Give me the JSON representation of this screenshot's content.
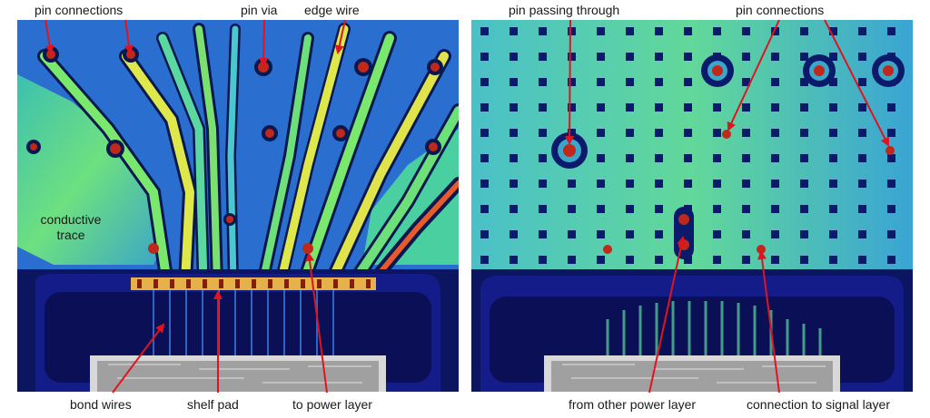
{
  "labels": {
    "pin_connections_left": "pin connections",
    "pin_via": "pin via",
    "edge_wire": "edge wire",
    "conductive_trace": "conductive trace",
    "bond_wires": "bond wires",
    "shelf_pad": "shelf pad",
    "to_power_layer": "to power layer",
    "pin_passing_through": "pin passing through",
    "pin_connections_right": "pin connections",
    "from_other_power_layer": "from other power layer",
    "connection_to_signal_layer": "connection to signal layer"
  },
  "colors": {
    "background_blue": "#0d1a78",
    "trace_green": "#4fd88a",
    "trace_yellow": "#d9e84a",
    "pin_red": "#c0281c",
    "arrow_red": "#e0141e",
    "text": "#1a1a1a"
  }
}
